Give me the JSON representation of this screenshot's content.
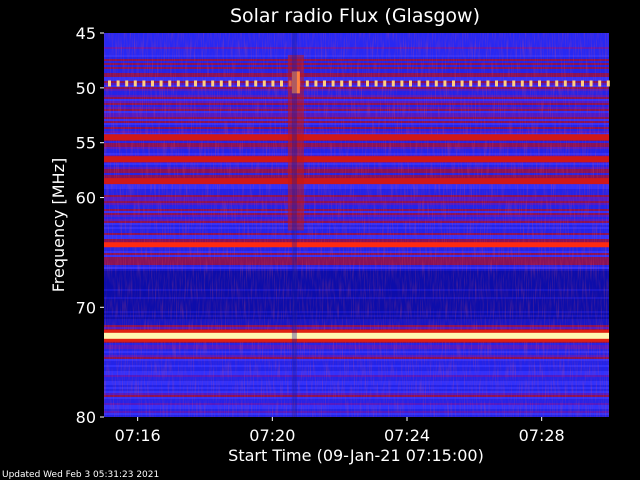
{
  "chart_data": {
    "type": "heatmap",
    "title": "Solar radio Flux (Glasgow)",
    "ylabel": "Frequency [MHz]",
    "xlabel": "Start Time (09-Jan-21 07:15:00)",
    "footer": "Updated Wed Feb  3 05:31:23 2021",
    "y_ticks": [
      "45",
      "50",
      "55",
      "60",
      "70",
      "80"
    ],
    "x_ticks": [
      "07:16",
      "07:20",
      "07:24",
      "07:28"
    ],
    "ylim_mhz": [
      45,
      80
    ],
    "xlim_minutes_after_0715": [
      0,
      15
    ],
    "y_tick_values_mhz": [
      45,
      50,
      55,
      60,
      70,
      80
    ],
    "x_tick_values_minutes": [
      1,
      5,
      9,
      13
    ],
    "colors": {
      "low": "#1a1aff",
      "mid": "#cc1010",
      "high": "#ffff80",
      "background": "#000000"
    },
    "bands_mhz": [
      {
        "f": 49.6,
        "level": "periodic-spikes"
      },
      {
        "f": 54.5,
        "level": "mid"
      },
      {
        "f": 56.5,
        "level": "mid"
      },
      {
        "f": 58.5,
        "level": "mid"
      },
      {
        "f": 64.3,
        "level": "strong"
      },
      {
        "f": 72.6,
        "level": "very-strong"
      }
    ]
  }
}
